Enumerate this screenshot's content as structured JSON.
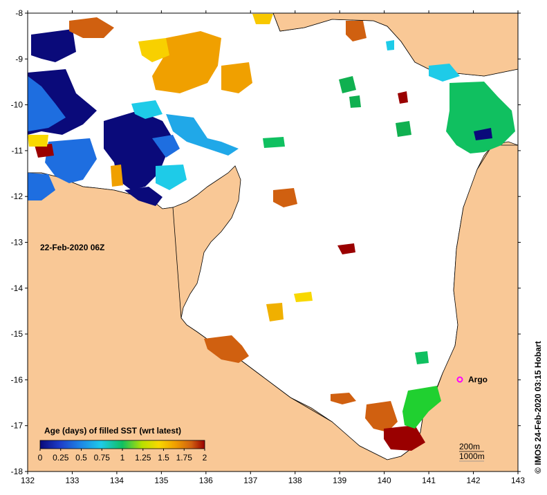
{
  "map": {
    "timestamp_label": "22-Feb-2020 06Z",
    "credit": "© IMOS 24-Feb-2020 03:15 Hobart",
    "longitude_ticks": [
      "132",
      "133",
      "134",
      "135",
      "136",
      "137",
      "138",
      "139",
      "140",
      "141",
      "142",
      "143"
    ],
    "latitude_ticks": [
      "-8",
      "-9",
      "-10",
      "-11",
      "-12",
      "-13",
      "-14",
      "-15",
      "-16",
      "-17",
      "-18"
    ],
    "marker": {
      "label": "Argo",
      "color": "#ff00ff"
    },
    "depth_contours": [
      "200m",
      "1000m"
    ],
    "colors": {
      "land": "#f9c896",
      "ocean_nodata": "#ffffff"
    }
  },
  "legend": {
    "title": "Age (days) of filled SST (wrt latest)",
    "ticks": [
      "0",
      "0.25",
      "0.5",
      "0.75",
      "1",
      "1.25",
      "1.5",
      "1.75",
      "2"
    ],
    "stops": [
      "#0a0a7a",
      "#1e3cc8",
      "#1e88e6",
      "#1ecbe8",
      "#10c060",
      "#b8e000",
      "#f8d800",
      "#f0a000",
      "#d06010",
      "#9a0000"
    ]
  }
}
